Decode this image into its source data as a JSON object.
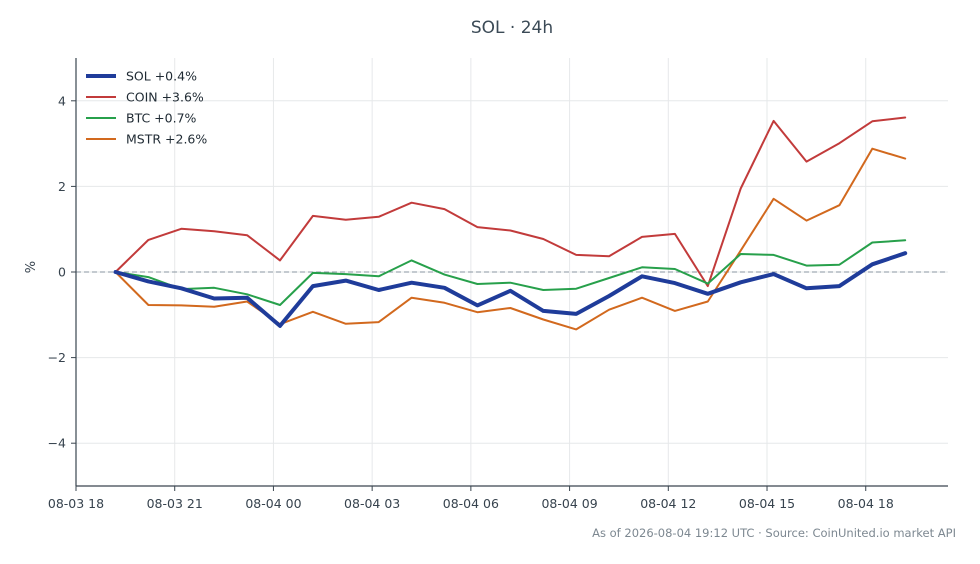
{
  "chart_data": {
    "type": "line",
    "title": "SOL · 24h",
    "xlabel": "",
    "ylabel": "%",
    "ylim": [
      -5,
      5
    ],
    "yticks": [
      -4,
      -2,
      0,
      2,
      4
    ],
    "ytick_labels": [
      "−4",
      "−2",
      "0",
      "2",
      "4"
    ],
    "xlim": [
      "2026-08-03 18:00",
      "2026-08-04 20:30"
    ],
    "xticks": [
      "2026-08-03 18:00",
      "2026-08-03 21:00",
      "2026-08-04 00:00",
      "2026-08-04 03:00",
      "2026-08-04 06:00",
      "2026-08-04 09:00",
      "2026-08-04 12:00",
      "2026-08-04 15:00",
      "2026-08-04 18:00"
    ],
    "xtick_labels": [
      "08-03 18",
      "08-03 21",
      "08-04 00",
      "08-04 03",
      "08-04 06",
      "08-04 09",
      "08-04 12",
      "08-04 15",
      "08-04 18"
    ],
    "grid": true,
    "zero_line": true,
    "legend_position": "top-left",
    "x": [
      "2026-08-03 19:12",
      "2026-08-03 20:12",
      "2026-08-03 21:12",
      "2026-08-03 22:12",
      "2026-08-03 23:12",
      "2026-08-04 00:12",
      "2026-08-04 01:12",
      "2026-08-04 02:12",
      "2026-08-04 03:12",
      "2026-08-04 04:12",
      "2026-08-04 05:12",
      "2026-08-04 06:12",
      "2026-08-04 07:12",
      "2026-08-04 08:12",
      "2026-08-04 09:12",
      "2026-08-04 10:12",
      "2026-08-04 11:12",
      "2026-08-04 12:12",
      "2026-08-04 13:12",
      "2026-08-04 14:12",
      "2026-08-04 15:12",
      "2026-08-04 16:12",
      "2026-08-04 17:12",
      "2026-08-04 18:12",
      "2026-08-04 19:12"
    ],
    "series": [
      {
        "name": "SOL +0.4%",
        "color": "#1f3c9a",
        "width": 4,
        "values": [
          0,
          -0.22,
          -0.38,
          -0.62,
          -0.6,
          -1.26,
          -0.33,
          -0.2,
          -0.42,
          -0.25,
          -0.37,
          -0.78,
          -0.44,
          -0.91,
          -0.98,
          -0.56,
          -0.1,
          -0.26,
          -0.51,
          -0.24,
          -0.05,
          -0.38,
          -0.33,
          0.18,
          0.44
        ]
      },
      {
        "name": "COIN +3.6%",
        "color": "#c23b3b",
        "width": 2,
        "values": [
          0,
          0.75,
          1.01,
          0.95,
          0.86,
          0.27,
          1.31,
          1.22,
          1.29,
          1.62,
          1.47,
          1.05,
          0.97,
          0.77,
          0.4,
          0.37,
          0.82,
          0.89,
          -0.33,
          1.95,
          3.53,
          2.58,
          3.01,
          3.52,
          3.61
        ]
      },
      {
        "name": "BTC +0.7%",
        "color": "#27a04b",
        "width": 2,
        "values": [
          0,
          -0.12,
          -0.4,
          -0.37,
          -0.52,
          -0.77,
          -0.02,
          -0.05,
          -0.1,
          0.27,
          -0.06,
          -0.28,
          -0.25,
          -0.42,
          -0.39,
          -0.14,
          0.11,
          0.07,
          -0.27,
          0.42,
          0.4,
          0.15,
          0.17,
          0.69,
          0.74
        ]
      },
      {
        "name": "MSTR +2.6%",
        "color": "#d2691e",
        "width": 2,
        "values": [
          0,
          -0.77,
          -0.78,
          -0.81,
          -0.69,
          -1.22,
          -0.93,
          -1.21,
          -1.17,
          -0.6,
          -0.72,
          -0.94,
          -0.84,
          -1.11,
          -1.34,
          -0.88,
          -0.6,
          -0.91,
          -0.69,
          0.5,
          1.71,
          1.2,
          1.56,
          2.88,
          2.65
        ]
      }
    ]
  },
  "footer": "As of 2026-08-04 19:12 UTC · Source: CoinUnited.io market API"
}
